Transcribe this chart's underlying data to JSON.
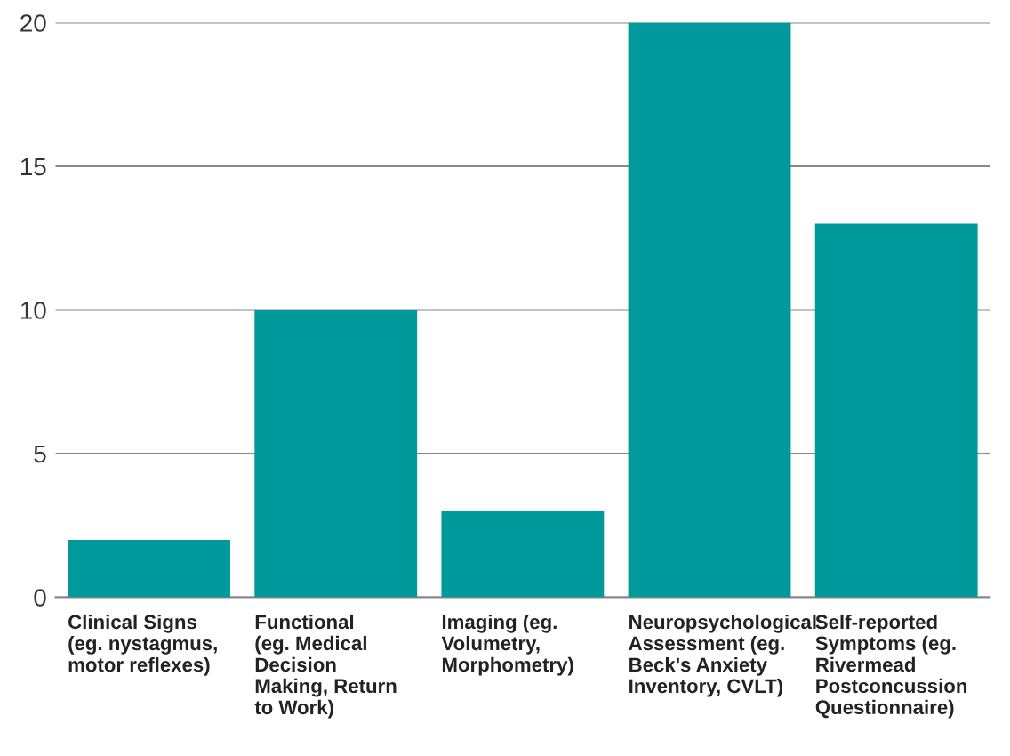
{
  "chart_data": {
    "type": "bar",
    "categories": [
      "Clinical Signs\n(eg. nystagmus,\nmotor reflexes)",
      "Functional\n(eg. Medical\nDecision\nMaking, Return\nto Work)",
      "Imaging (eg.\nVolumetry,\nMorphometry)",
      "Neuropsychological\nAssessment (eg.\nBeck's Anxiety\nInventory, CVLT)",
      "Self-reported\nSymptoms (eg.\nRivermead\nPostconcussion\nQuestionnaire)"
    ],
    "values": [
      2,
      10,
      3,
      20,
      13
    ],
    "color": "#009a9c",
    "ylim": [
      0,
      20
    ],
    "yticks": [
      0,
      5,
      10,
      15,
      20
    ],
    "grid": "y"
  }
}
